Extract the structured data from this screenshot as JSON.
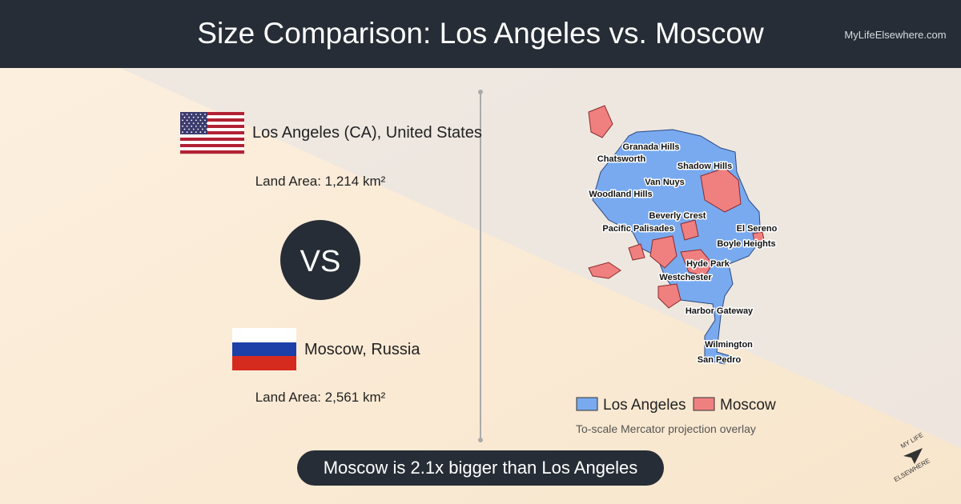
{
  "header": {
    "title": "Size Comparison: Los Angeles vs. Moscow",
    "site": "MyLifeElsewhere.com"
  },
  "cities": [
    {
      "name": "Los Angeles (CA), United States",
      "land_area": "Land Area: 1,214 km²"
    },
    {
      "name": "Moscow, Russia",
      "land_area": "Land Area: 2,561 km²"
    }
  ],
  "vs": "VS",
  "map": {
    "labels": [
      "Granada Hills",
      "Chatsworth",
      "Shadow Hills",
      "Van Nuys",
      "Woodland Hills",
      "Beverly Crest",
      "El Sereno",
      "Pacific Palisades",
      "Boyle Heights",
      "Hyde Park",
      "Westchester",
      "Harbor Gateway",
      "Wilmington",
      "San Pedro"
    ],
    "legend": [
      "Los Angeles",
      "Moscow"
    ],
    "note": "To-scale Mercator projection overlay"
  },
  "conclusion": "Moscow is 2.1x bigger than Los Angeles",
  "logo": {
    "top": "MY LIFE",
    "bottom": "ELSEWHERE"
  }
}
